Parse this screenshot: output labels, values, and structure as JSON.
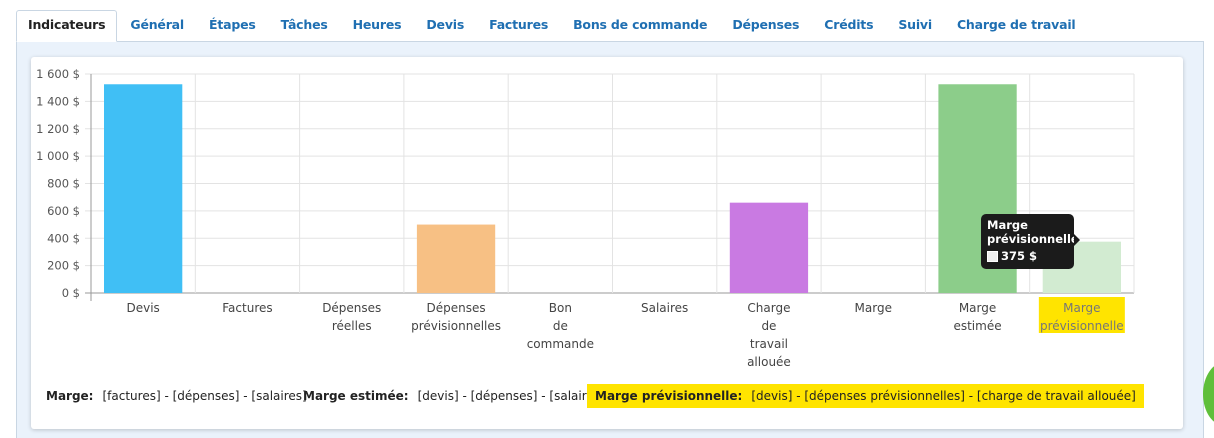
{
  "tabs": [
    {
      "label": "Indicateurs",
      "active": true
    },
    {
      "label": "Général"
    },
    {
      "label": "Étapes"
    },
    {
      "label": "Tâches"
    },
    {
      "label": "Heures"
    },
    {
      "label": "Devis"
    },
    {
      "label": "Factures"
    },
    {
      "label": "Bons de commande"
    },
    {
      "label": "Dépenses"
    },
    {
      "label": "Crédits"
    },
    {
      "label": "Suivi"
    },
    {
      "label": "Charge de travail"
    }
  ],
  "chart_data": {
    "type": "bar",
    "categories": [
      [
        "Devis"
      ],
      [
        "Factures"
      ],
      [
        "Dépenses",
        "réelles"
      ],
      [
        "Dépenses",
        "prévisionnelles"
      ],
      [
        "Bon",
        "de",
        "commande"
      ],
      [
        "Salaires"
      ],
      [
        "Charge",
        "de",
        "travail",
        "allouée"
      ],
      [
        "Marge"
      ],
      [
        "Marge",
        "estimée"
      ],
      [
        "Marge",
        "prévisionnelle"
      ]
    ],
    "values": [
      1525,
      0,
      0,
      500,
      0,
      0,
      660,
      0,
      1525,
      375
    ],
    "colors": [
      "#40bff5",
      "#40bff5",
      "#40bff5",
      "#f7c084",
      "#40bff5",
      "#40bff5",
      "#c97ae2",
      "#40bff5",
      "#8ccd8a",
      "#d2ebd1"
    ],
    "highlighted_index": 9,
    "yticks": [
      "0 $",
      "200 $",
      "400 $",
      "600 $",
      "800 $",
      "1 000 $",
      "1 200 $",
      "1 400 $",
      "1 600 $"
    ],
    "ylim": [
      0,
      1600
    ],
    "grid": true,
    "title": "",
    "xlabel": "",
    "ylabel": ""
  },
  "tooltip": {
    "title_line1": "Marge",
    "title_line2": "prévisionnelle",
    "value": "375 $",
    "swatch_color": "#eeeeee"
  },
  "legend": {
    "marge_label": "Marge:",
    "marge_formula": "[factures] - [dépenses] - [salaires]",
    "estimee_label": "Marge estimée:",
    "estimee_formula": "[devis] - [dépenses] - [salaires]",
    "prev_label": "Marge prévisionnelle:",
    "prev_formula": "[devis] - [dépenses prévisionnelles] - [charge de travail allouée]",
    "highlight_color": "#ffe400"
  }
}
